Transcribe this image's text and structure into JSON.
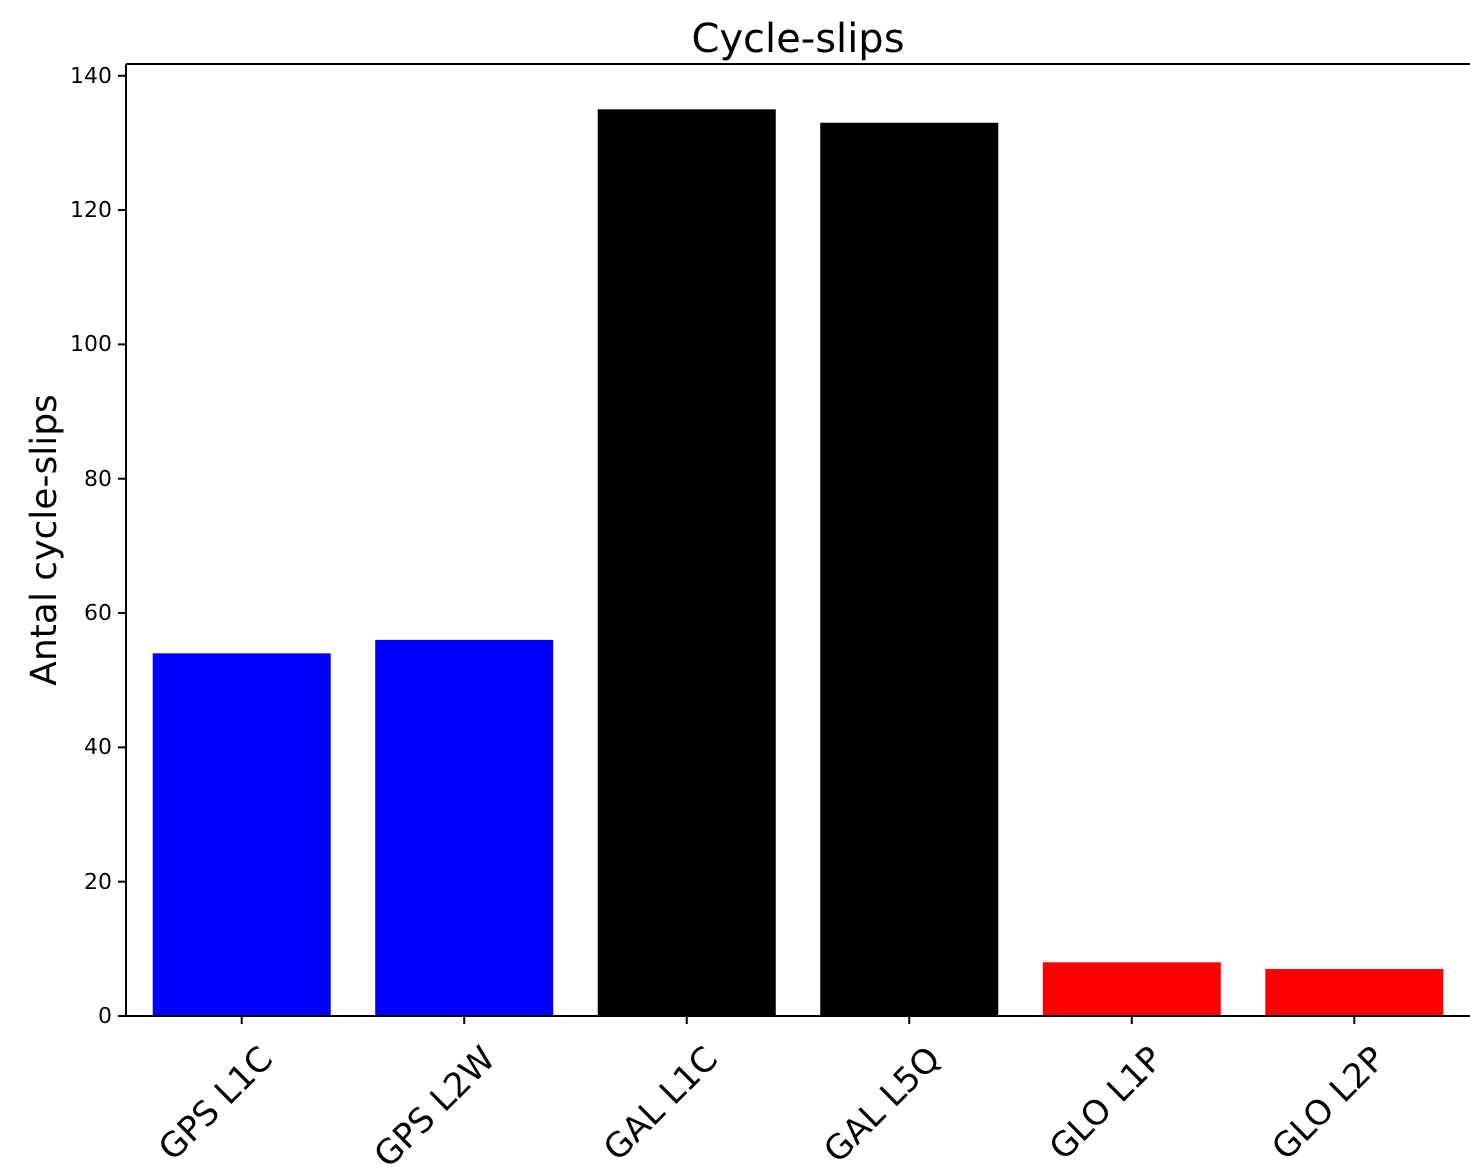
{
  "chart_data": {
    "type": "bar",
    "title": "Cycle-slips",
    "ylabel": "Antal cycle-slips",
    "categories": [
      "GPS L1C",
      "GPS L2W",
      "GAL L1C",
      "GAL L5Q",
      "GLO L1P",
      "GLO L2P"
    ],
    "values": [
      54,
      56,
      135,
      133,
      8,
      7
    ],
    "colors": [
      "#0000ff",
      "#0000ff",
      "#000000",
      "#000000",
      "#ff0000",
      "#ff0000"
    ],
    "ylim": [
      0,
      141.75
    ],
    "yticks": [
      0,
      20,
      40,
      60,
      80,
      100,
      120,
      140
    ],
    "grid": false
  }
}
